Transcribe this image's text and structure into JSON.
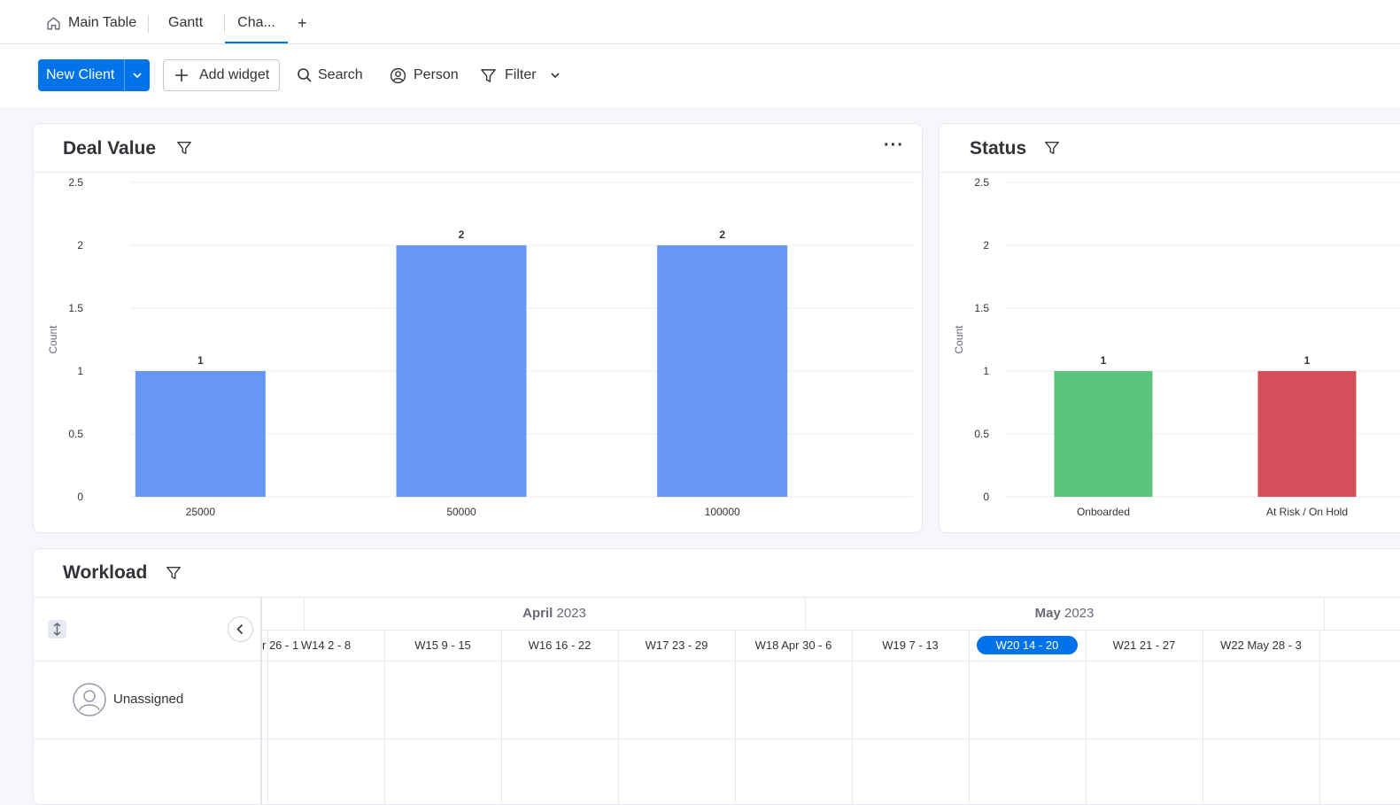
{
  "tabs": [
    {
      "label": "Main Table",
      "icon": "home-icon"
    },
    {
      "label": "Gantt"
    },
    {
      "label": "Cha..."
    }
  ],
  "add_tab_label": "+",
  "toolbar": {
    "new_button": "New Client",
    "add_widget": "Add widget",
    "search": "Search",
    "person": "Person",
    "filter": "Filter"
  },
  "colors": {
    "accent": "#0073ea",
    "bar_blue": "#6797f3",
    "onboarded": "#5ac47a",
    "at_risk": "#d54f5b"
  },
  "deal_value": {
    "title": "Deal Value",
    "more_label": "···"
  },
  "status": {
    "title": "Status"
  },
  "chart_data": [
    {
      "type": "bar",
      "title": "Deal Value",
      "categories": [
        "25000",
        "50000",
        "100000"
      ],
      "values": [
        1,
        2,
        2
      ],
      "ylabel": "Count",
      "ylim": [
        0,
        2.5
      ],
      "yticks": [
        "0",
        "0.5",
        "1",
        "1.5",
        "2",
        "2.5"
      ],
      "grid": true,
      "colors": [
        "#6797f3",
        "#6797f3",
        "#6797f3"
      ]
    },
    {
      "type": "bar",
      "title": "Status",
      "categories": [
        "Onboarded",
        "At Risk / On Hold"
      ],
      "values": [
        1,
        1
      ],
      "ylabel": "Count",
      "ylim": [
        0,
        2.5
      ],
      "yticks": [
        "0",
        "0.5",
        "1",
        "1.5",
        "2",
        "2.5"
      ],
      "grid": true,
      "colors": [
        "#5ac47a",
        "#d54f5b"
      ]
    }
  ],
  "workload": {
    "title": "Workload",
    "months": [
      {
        "bold": "April",
        "rest": " 2023"
      },
      {
        "bold": "May",
        "rest": " 2023"
      }
    ],
    "weeks": [
      "r 26 - 1",
      "W14 2 - 8",
      "W15 9 - 15",
      "W16 16 - 22",
      "W17 23 - 29",
      "W18 Apr 30 - 6",
      "W19 7 - 13",
      "W20 14 - 20",
      "W21 21 - 27",
      "W22 May 28 - 3"
    ],
    "current_week": "W20 14 - 20",
    "row_label": "Unassigned"
  }
}
